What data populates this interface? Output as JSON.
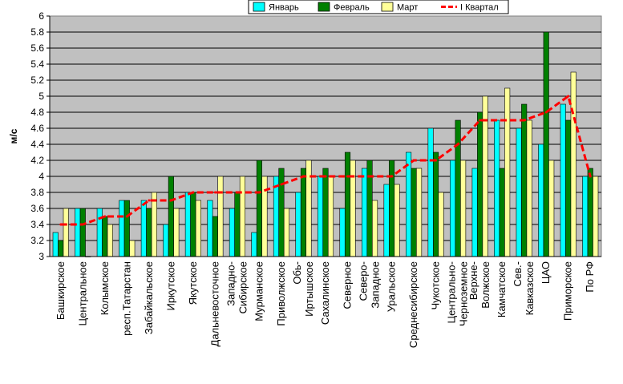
{
  "chart_data": {
    "type": "bar",
    "ylabel": "м/с",
    "ylim": [
      3,
      6
    ],
    "ytick_step": 0.2,
    "grid": true,
    "legend_position": "top",
    "categories": [
      "Башкирское",
      "Центральное",
      "Колымское",
      "респ.Татарстан",
      "Забайкальское",
      "Иркутское",
      "Якутское",
      "Дальневосточное",
      "Западно-\nСибирское",
      "Мурманское",
      "Приволжское",
      "Обь-\nИртышское",
      "Сахалинское",
      "Северное",
      "Северо-\nЗападное",
      "Уральское",
      "Среднесибирское",
      "Чукотское",
      "Центрально-\nЧерноземное",
      "Верхне-\nВолжское",
      "Камчатское",
      "Сев.-\nКавказское",
      "ЦАО",
      "Приморское",
      "По РФ"
    ],
    "series": [
      {
        "name": "Январь",
        "color": "#00ffff",
        "kind": "bar",
        "values": [
          3.3,
          3.6,
          3.6,
          3.7,
          3.7,
          3.4,
          3.8,
          3.7,
          3.6,
          3.3,
          4.0,
          3.8,
          4.0,
          3.6,
          4.1,
          3.9,
          4.3,
          4.6,
          4.2,
          4.1,
          4.7,
          4.6,
          4.4,
          4.9,
          4.0
        ]
      },
      {
        "name": "Февраль",
        "color": "#008000",
        "kind": "bar",
        "values": [
          3.2,
          3.6,
          3.5,
          3.7,
          3.6,
          4.0,
          3.8,
          3.5,
          3.8,
          4.2,
          4.1,
          4.1,
          4.1,
          4.3,
          4.2,
          4.2,
          4.1,
          4.3,
          4.7,
          4.8,
          4.1,
          4.9,
          5.8,
          4.7,
          4.1
        ]
      },
      {
        "name": "Март",
        "color": "#ffff99",
        "kind": "bar",
        "values": [
          3.6,
          3.0,
          3.4,
          3.2,
          3.8,
          3.6,
          3.7,
          4.0,
          4.0,
          4.0,
          3.6,
          4.2,
          4.0,
          4.2,
          3.7,
          3.9,
          4.1,
          3.8,
          4.2,
          5.0,
          5.1,
          4.7,
          4.2,
          5.3,
          4.0
        ]
      },
      {
        "name": "I Квартал",
        "color": "#ff0000",
        "kind": "line",
        "values": [
          3.4,
          3.4,
          3.5,
          3.5,
          3.7,
          3.7,
          3.8,
          3.8,
          3.8,
          3.8,
          3.9,
          4.0,
          4.0,
          4.0,
          4.0,
          4.0,
          4.2,
          4.2,
          4.4,
          4.7,
          4.7,
          4.7,
          4.8,
          5.0,
          4.0
        ]
      }
    ]
  }
}
